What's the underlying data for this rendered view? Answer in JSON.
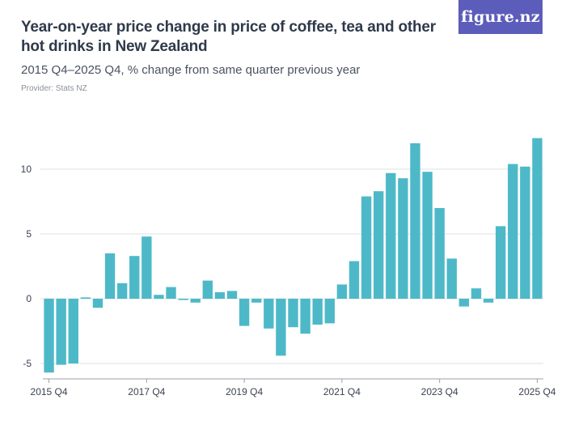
{
  "header": {
    "title": "Year-on-year price change in price of coffee, tea and other hot drinks in New Zealand",
    "subtitle": "2015 Q4–2025 Q4, % change from same quarter previous year",
    "provider": "Provider: Stats NZ"
  },
  "logo": {
    "text": "figure.nz"
  },
  "colors": {
    "bar": "#4db9c8",
    "grid": "#dfe2e6",
    "logo_bg": "#5c5dba"
  },
  "chart_data": {
    "type": "bar",
    "title": "Year-on-year price change in price of coffee, tea and other hot drinks in New Zealand",
    "subtitle": "2015 Q4–2025 Q4, % change from same quarter previous year",
    "xlabel": "",
    "ylabel": "",
    "ylim": [
      -6,
      13
    ],
    "yticks": [
      -5,
      0,
      5,
      10
    ],
    "xtick_labels": [
      "2015 Q4",
      "2017 Q4",
      "2019 Q4",
      "2021 Q4",
      "2023 Q4",
      "2025 Q4"
    ],
    "xtick_indices": [
      0,
      8,
      16,
      24,
      32,
      40
    ],
    "grid": true,
    "categories": [
      "2015 Q4",
      "2016 Q1",
      "2016 Q2",
      "2016 Q3",
      "2016 Q4",
      "2017 Q1",
      "2017 Q2",
      "2017 Q3",
      "2017 Q4",
      "2018 Q1",
      "2018 Q2",
      "2018 Q3",
      "2018 Q4",
      "2019 Q1",
      "2019 Q2",
      "2019 Q3",
      "2019 Q4",
      "2020 Q1",
      "2020 Q2",
      "2020 Q3",
      "2020 Q4",
      "2021 Q1",
      "2021 Q2",
      "2021 Q3",
      "2021 Q4",
      "2022 Q1",
      "2022 Q2",
      "2022 Q3",
      "2022 Q4",
      "2023 Q1",
      "2023 Q2",
      "2023 Q3",
      "2023 Q4",
      "2024 Q1",
      "2024 Q2",
      "2024 Q3",
      "2024 Q4",
      "2025 Q1",
      "2025 Q2",
      "2025 Q3",
      "2025 Q4"
    ],
    "values": [
      -5.7,
      -5.1,
      -5.0,
      0.1,
      -0.7,
      3.5,
      1.2,
      3.3,
      4.8,
      0.3,
      0.9,
      -0.1,
      -0.3,
      1.4,
      0.5,
      0.6,
      -2.1,
      -0.3,
      -2.3,
      -4.4,
      -2.2,
      -2.7,
      -2.0,
      -1.9,
      1.1,
      2.9,
      7.9,
      8.3,
      9.7,
      9.3,
      12.0,
      9.8,
      7.0,
      3.1,
      -0.6,
      0.8,
      -0.3,
      5.6,
      10.4,
      10.2,
      12.4
    ]
  }
}
